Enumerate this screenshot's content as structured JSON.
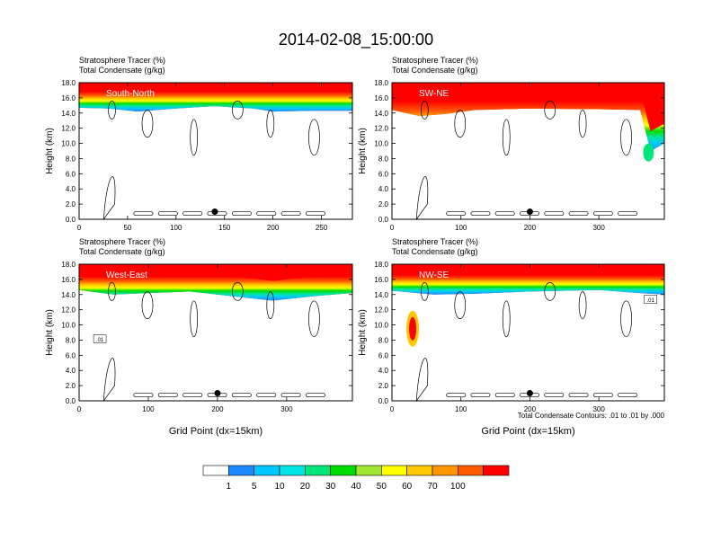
{
  "title": "2014-02-08_15:00:00",
  "colorbar": {
    "labels": [
      "1",
      "5",
      "10",
      "20",
      "30",
      "40",
      "50",
      "60",
      "70",
      "100"
    ],
    "colors": [
      "#ffffff",
      "#1e8cff",
      "#00c8ff",
      "#00e6e6",
      "#00e67a",
      "#00dc00",
      "#a0e632",
      "#ffff00",
      "#ffc800",
      "#ff9600",
      "#ff5a00",
      "#ff0000"
    ]
  },
  "footnote": "Total Condensate Contours: .01 to .01 by .000",
  "chart_data": [
    {
      "type": "contour",
      "name": "South-North",
      "header_lines": [
        "Stratosphere Tracer   (%)",
        "Total Condensate   (g/kg)"
      ],
      "ylabel": "Height (km)",
      "xlabel": "",
      "xlim": [
        0,
        282
      ],
      "ylim": [
        0,
        18
      ],
      "xticks": [
        0,
        50,
        100,
        150,
        200,
        250
      ],
      "yticks": [
        "0.0",
        "2.0",
        "4.0",
        "6.0",
        "8.0",
        "10.0",
        "12.0",
        "14.0",
        "16.0",
        "18.0"
      ],
      "marker": [
        140,
        1.0
      ],
      "tracer_front_km": [
        [
          0,
          14.7
        ],
        [
          30,
          14.6
        ],
        [
          60,
          14.2
        ],
        [
          100,
          14.6
        ],
        [
          140,
          14.9
        ],
        [
          180,
          14.6
        ],
        [
          200,
          14.2
        ],
        [
          240,
          14.3
        ],
        [
          282,
          14.3
        ]
      ],
      "contour_label": ""
    },
    {
      "type": "contour",
      "name": "SW-NE",
      "header_lines": [
        "Stratosphere Tracer   (%)",
        "Total Condensate   (g/kg)"
      ],
      "ylabel": "Height (km)",
      "xlabel": "",
      "xlim": [
        0,
        395
      ],
      "ylim": [
        0,
        18
      ],
      "xticks": [
        0,
        100,
        200,
        300
      ],
      "yticks": [
        "0.0",
        "2.0",
        "4.0",
        "6.0",
        "8.0",
        "10.0",
        "12.0",
        "14.0",
        "16.0",
        "18.0"
      ],
      "marker": [
        200,
        1.0
      ],
      "tracer_front_km": [
        [
          0,
          14.4
        ],
        [
          40,
          13.6
        ],
        [
          80,
          13.9
        ],
        [
          120,
          14.4
        ],
        [
          200,
          14.6
        ],
        [
          300,
          14.5
        ],
        [
          360,
          14.4
        ],
        [
          375,
          9.0
        ],
        [
          395,
          10.0
        ]
      ],
      "contour_label": ""
    },
    {
      "type": "contour",
      "name": "West-East",
      "header_lines": [
        "Stratosphere Tracer   (%)",
        "Total Condensate   (g/kg)"
      ],
      "ylabel": "Height (km)",
      "xlabel": "Grid Point (dx=15km)",
      "xlim": [
        0,
        395
      ],
      "ylim": [
        0,
        18
      ],
      "xticks": [
        0,
        100,
        200,
        300
      ],
      "yticks": [
        "0.0",
        "2.0",
        "4.0",
        "6.0",
        "8.0",
        "10.0",
        "12.0",
        "14.0",
        "16.0",
        "18.0"
      ],
      "marker": [
        200,
        1.0
      ],
      "tracer_front_km": [
        [
          0,
          14.6
        ],
        [
          50,
          14.0
        ],
        [
          100,
          14.2
        ],
        [
          160,
          14.4
        ],
        [
          220,
          13.8
        ],
        [
          280,
          13.2
        ],
        [
          340,
          13.8
        ],
        [
          395,
          14.2
        ]
      ],
      "contour_label": ".01"
    },
    {
      "type": "contour",
      "name": "NW-SE",
      "header_lines": [
        "Stratosphere Tracer   (%)",
        "Total Condensate   (g/kg)"
      ],
      "ylabel": "Height (km)",
      "xlabel": "Grid Point (dx=15km)",
      "xlim": [
        0,
        395
      ],
      "ylim": [
        0,
        18
      ],
      "xticks": [
        0,
        100,
        200,
        300
      ],
      "yticks": [
        "0.0",
        "2.0",
        "4.0",
        "6.0",
        "8.0",
        "10.0",
        "12.0",
        "14.0",
        "16.0",
        "18.0"
      ],
      "marker": [
        200,
        1.0
      ],
      "tracer_front_km": [
        [
          0,
          14.5
        ],
        [
          60,
          14.0
        ],
        [
          120,
          14.1
        ],
        [
          200,
          14.4
        ],
        [
          300,
          14.6
        ],
        [
          360,
          14.2
        ],
        [
          395,
          14.0
        ]
      ],
      "contour_label": ".01"
    }
  ]
}
